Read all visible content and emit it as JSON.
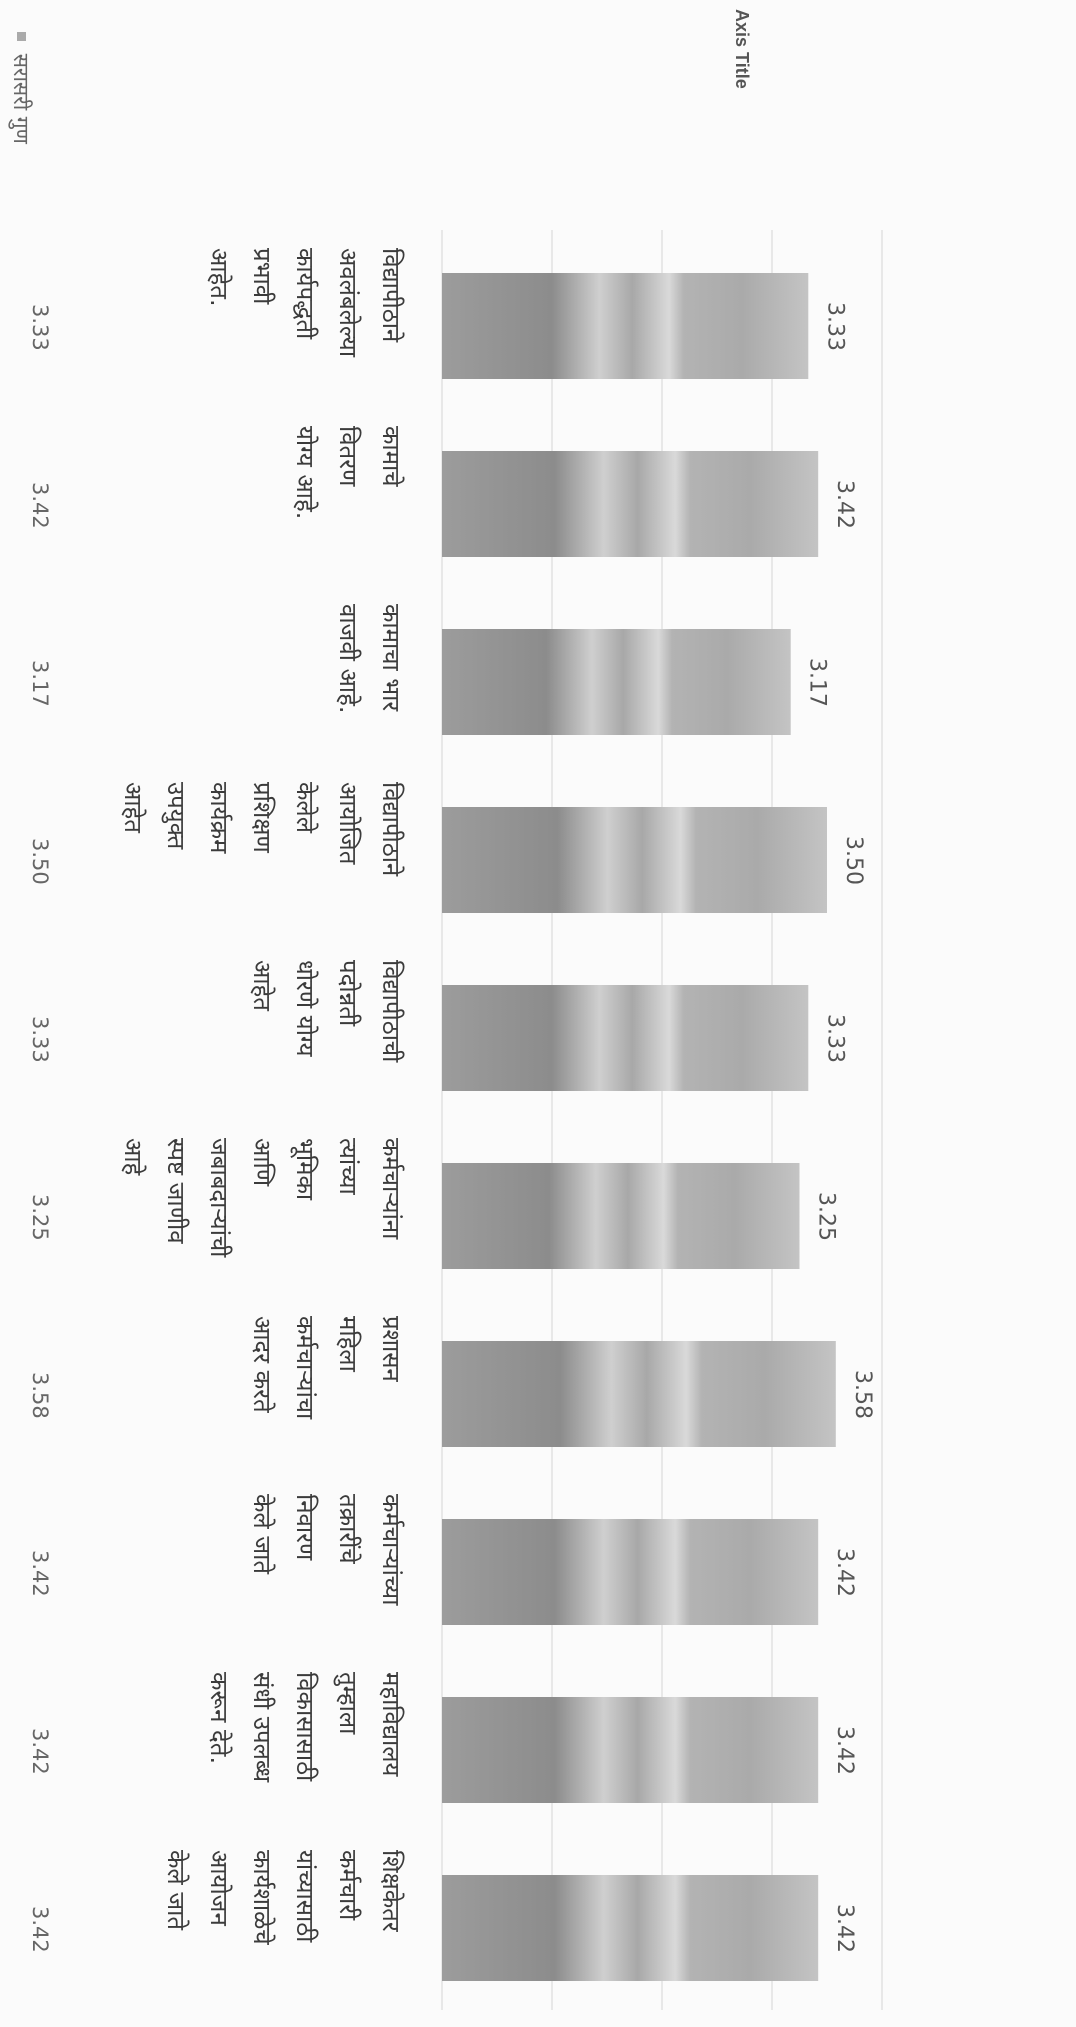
{
  "chart_data": {
    "type": "bar",
    "orientation": "horizontal",
    "rotated_image": "90deg-clockwise",
    "axis_title": "Axis Title",
    "xlim": [
      0,
      4
    ],
    "grid": true,
    "legend_position": "top-left",
    "categories": [
      "विद्यापीठाने अवलंबलेल्या कार्यपद्धती प्रभावी आहेत.",
      "कामाचे वितरण योग्य आहे.",
      "कामाचा भार वाजवी आहे.",
      "विद्यापीठाने आयोजित केलेले प्रशिक्षण कार्यक्रम उपयुक्त आहेत",
      "विद्यापीठाची पदोन्नती धोरणे योग्य आहेत",
      "कर्मचाऱ्यांना त्यांच्या भूमिका आणि जबाबदाऱ्यांची स्पष्ट जाणीव आहे",
      "प्रशासन महिला कर्मचाऱ्यांचा आदर करते",
      "कर्मचाऱ्यांच्या तक्रारींचे निवारण केले जाते",
      "महाविद्यालय तुम्हाला विकासासाठी संधी उपलब्ध करून देते.",
      "शिक्षकेतर कर्मचारी यांच्यासाठी कार्यशाळेचे आयोजन केले जाते"
    ],
    "category_lines": [
      [
        "विद्यापीठाने",
        "अवलंबलेल्या",
        "कार्यपद्धती",
        "प्रभावी",
        "आहेत."
      ],
      [
        "कामाचे",
        "वितरण",
        "योग्य आहे."
      ],
      [
        "कामाचा भार",
        "वाजवी आहे."
      ],
      [
        "विद्यापीठाने",
        "आयोजित",
        "केलेले",
        "प्रशिक्षण",
        "कार्यक्रम",
        "उपयुक्त",
        "आहेत"
      ],
      [
        "विद्यापीठाची",
        "पदोन्नती",
        "धोरणे योग्य",
        "आहेत"
      ],
      [
        "कर्मचाऱ्यांना",
        "त्यांच्या",
        "भूमिका",
        "आणि",
        "जबाबदाऱ्यांची",
        "स्पष्ट जाणीव",
        "आहे"
      ],
      [
        "प्रशासन",
        "महिला",
        "कर्मचाऱ्यांचा",
        "आदर करते"
      ],
      [
        "कर्मचाऱ्यांच्या",
        "तक्रारींचे",
        "निवारण",
        "केले जाते"
      ],
      [
        "महाविद्यालय",
        "तुम्हाला",
        "विकासासाठी",
        "संधी उपलब्ध",
        "करून देते."
      ],
      [
        "शिक्षकेतर",
        "कर्मचारी",
        "यांच्यासाठी",
        "कार्यशाळेचे",
        "आयोजन",
        "केले जाते"
      ]
    ],
    "series": [
      {
        "name": "सरासरी गुण",
        "values": [
          3.33,
          3.42,
          3.17,
          3.5,
          3.33,
          3.25,
          3.58,
          3.42,
          3.42,
          3.42
        ],
        "value_labels": [
          "3.33",
          "3.42",
          "3.17",
          "3.50",
          "3.33",
          "3.25",
          "3.58",
          "3.42",
          "3.42",
          "3.42"
        ],
        "color": "#8f8f8f"
      }
    ]
  }
}
